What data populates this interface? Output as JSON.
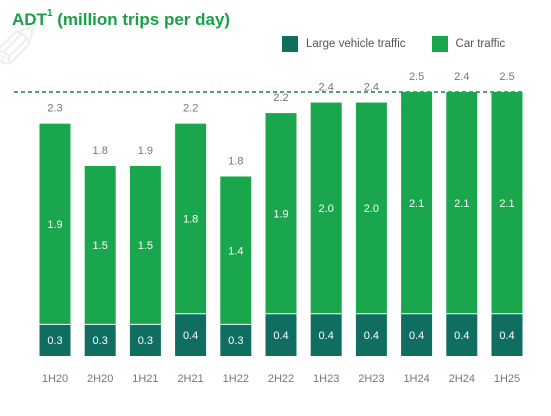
{
  "title": {
    "main": "ADT",
    "superscript": "1",
    "suffix": " (million trips per day)"
  },
  "colors": {
    "accent": "#1aa04a",
    "car": "#1aa64c",
    "large_vehicle": "#0f6e5f",
    "dashed_line": "#1a7f57",
    "text_muted": "#777777"
  },
  "chart_data": {
    "type": "bar",
    "stacked": true,
    "categories": [
      "1H20",
      "2H20",
      "1H21",
      "2H21",
      "1H22",
      "2H22",
      "1H23",
      "2H23",
      "1H24",
      "2H24",
      "1H25"
    ],
    "series": [
      {
        "name": "Large vehicle traffic",
        "values": [
          0.3,
          0.3,
          0.3,
          0.4,
          0.3,
          0.4,
          0.4,
          0.4,
          0.4,
          0.4,
          0.4
        ]
      },
      {
        "name": "Car traffic",
        "values": [
          1.9,
          1.5,
          1.5,
          1.8,
          1.4,
          1.9,
          2.0,
          2.0,
          2.1,
          2.1,
          2.1
        ]
      }
    ],
    "totals": [
      2.3,
      1.8,
      1.9,
      2.2,
      1.8,
      2.2,
      2.4,
      2.4,
      2.5,
      2.4,
      2.5
    ],
    "reference_line": {
      "value": 2.5,
      "style": "dashed"
    },
    "ylim": [
      0,
      2.5
    ],
    "legend_position": "top-right",
    "grid": false
  }
}
